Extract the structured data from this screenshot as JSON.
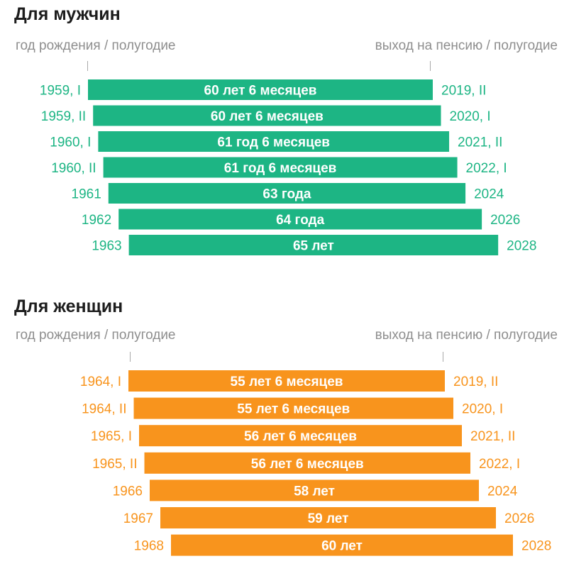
{
  "colors": {
    "men": "#1db584",
    "women": "#f8941d"
  },
  "chart_data": [
    {
      "type": "bar",
      "title": "Для мужчин",
      "left_header": "год рождения / полугодие",
      "right_header": "выход на пенсию / полугодие",
      "color": "#1db584",
      "rows": [
        {
          "birth": "1959, I",
          "label": "60 лет 6 месяцев",
          "retire": "2019, II",
          "age_years": 60.5
        },
        {
          "birth": "1959, II",
          "label": "60 лет 6 месяцев",
          "retire": "2020, I",
          "age_years": 60.5
        },
        {
          "birth": "1960, I",
          "label": "61 год 6 месяцев",
          "retire": "2021, II",
          "age_years": 61.5
        },
        {
          "birth": "1960, II",
          "label": "61 год 6 месяцев",
          "retire": "2022, I",
          "age_years": 61.5
        },
        {
          "birth": "1961",
          "label": "63 года",
          "retire": "2024",
          "age_years": 63
        },
        {
          "birth": "1962",
          "label": "64 года",
          "retire": "2026",
          "age_years": 64
        },
        {
          "birth": "1963",
          "label": "65 лет",
          "retire": "2028",
          "age_years": 65
        }
      ]
    },
    {
      "type": "bar",
      "title": "Для женщин",
      "left_header": "год рождения / полугодие",
      "right_header": "выход на пенсию / полугодие",
      "color": "#f8941d",
      "rows": [
        {
          "birth": "1964, I",
          "label": "55 лет 6 месяцев",
          "retire": "2019, II",
          "age_years": 55.5
        },
        {
          "birth": "1964, II",
          "label": "55 лет 6 месяцев",
          "retire": "2020, I",
          "age_years": 55.5
        },
        {
          "birth": "1965, I",
          "label": "56 лет 6 месяцев",
          "retire": "2021, II",
          "age_years": 56.5
        },
        {
          "birth": "1965, II",
          "label": "56 лет 6 месяцев",
          "retire": "2022, I",
          "age_years": 56.5
        },
        {
          "birth": "1966",
          "label": "58 лет",
          "retire": "2024",
          "age_years": 58
        },
        {
          "birth": "1967",
          "label": "59 лет",
          "retire": "2026",
          "age_years": 59
        },
        {
          "birth": "1968",
          "label": "60 лет",
          "retire": "2028",
          "age_years": 60
        }
      ]
    }
  ]
}
